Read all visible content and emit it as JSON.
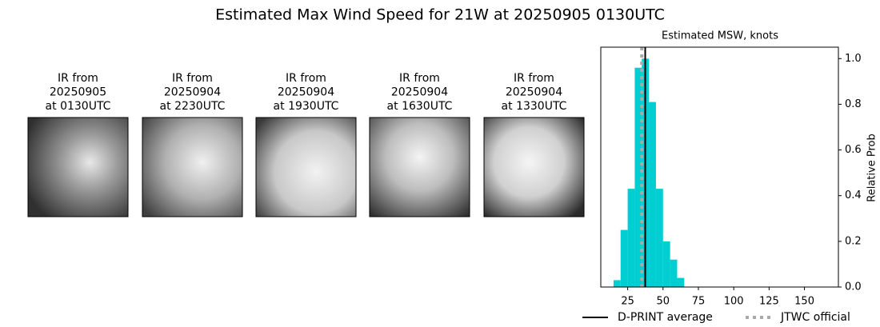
{
  "title": "Estimated Max Wind Speed for 21W at 20250905 0130UTC",
  "panels": [
    {
      "lines": [
        "IR from",
        "20250905",
        "at 0130UTC"
      ]
    },
    {
      "lines": [
        "IR from",
        "20250904",
        "at 2230UTC"
      ]
    },
    {
      "lines": [
        "IR from",
        "20250904",
        "at 1930UTC"
      ]
    },
    {
      "lines": [
        "IR from",
        "20250904",
        "at 1630UTC"
      ]
    },
    {
      "lines": [
        "IR from",
        "20250904",
        "at 1330UTC"
      ]
    }
  ],
  "chart_data": {
    "type": "histogram",
    "title": "Estimated MSW, knots",
    "y_label": "Relative Prob",
    "bins": [
      15,
      20,
      25,
      30,
      35,
      40,
      45,
      50,
      55,
      60,
      65
    ],
    "values": [
      0.03,
      0.25,
      0.43,
      0.96,
      1.0,
      0.81,
      0.43,
      0.2,
      0.12,
      0.04
    ],
    "color": "#00ced1",
    "xlim": [
      6,
      174
    ],
    "ylim": [
      0,
      1.05
    ],
    "xticks": [
      25,
      50,
      75,
      100,
      125,
      150
    ],
    "yticks": [
      {
        "value": 0,
        "label": "0.0"
      },
      {
        "value": 0.2,
        "label": "0.2"
      },
      {
        "value": 0.4,
        "label": "0.4"
      },
      {
        "value": 0.6,
        "label": "0.6"
      },
      {
        "value": 0.8,
        "label": "0.8"
      },
      {
        "value": 1.0,
        "label": "1.0"
      }
    ],
    "vlines": [
      {
        "name": "D-PRINT average",
        "value": 37.4,
        "color": "#000000",
        "style": "solid"
      },
      {
        "name": "JTWC official",
        "value": 35,
        "color": "#aaaaaa",
        "style": "dotted"
      }
    ]
  }
}
